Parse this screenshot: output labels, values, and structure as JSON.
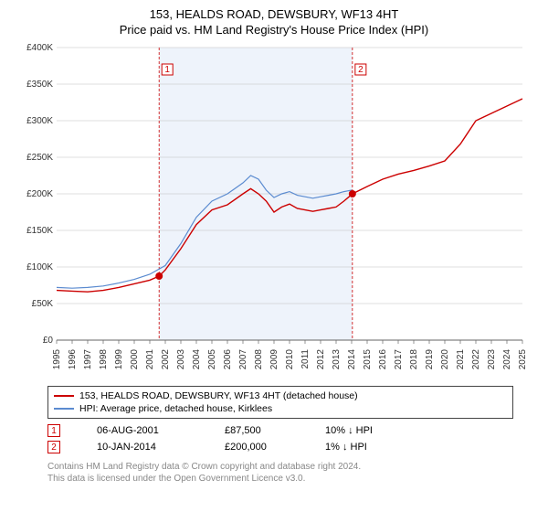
{
  "title_line1": "153, HEALDS ROAD, DEWSBURY, WF13 4HT",
  "title_line2": "Price paid vs. HM Land Registry's House Price Index (HPI)",
  "chart": {
    "type": "line",
    "background_color": "#ffffff",
    "shaded_band": {
      "x_from": 2001.6,
      "x_to": 2014.05,
      "fill": "#eef3fb"
    },
    "xlim": [
      1995,
      2025
    ],
    "ylim": [
      0,
      400000
    ],
    "ytick_step": 50000,
    "ytick_labels": [
      "£0",
      "£50K",
      "£100K",
      "£150K",
      "£200K",
      "£250K",
      "£300K",
      "£350K",
      "£400K"
    ],
    "xtick_step": 1,
    "xtick_labels": [
      "1995",
      "1996",
      "1997",
      "1998",
      "1999",
      "2000",
      "2001",
      "2002",
      "2003",
      "2004",
      "2005",
      "2006",
      "2007",
      "2008",
      "2009",
      "2010",
      "2011",
      "2012",
      "2013",
      "2014",
      "2015",
      "2016",
      "2017",
      "2018",
      "2019",
      "2020",
      "2021",
      "2022",
      "2023",
      "2024",
      "2025"
    ],
    "grid_color": "#bfbfbf",
    "axis_color": "#666666",
    "series": [
      {
        "name": "property",
        "label": "153, HEALDS ROAD, DEWSBURY, WF13 4HT (detached house)",
        "color": "#cc0000",
        "width": 1.4,
        "data": [
          [
            1995,
            68000
          ],
          [
            1996,
            67000
          ],
          [
            1997,
            66000
          ],
          [
            1998,
            68000
          ],
          [
            1999,
            72000
          ],
          [
            2000,
            77000
          ],
          [
            2001,
            82000
          ],
          [
            2001.6,
            87500
          ],
          [
            2002,
            96000
          ],
          [
            2003,
            125000
          ],
          [
            2004,
            158000
          ],
          [
            2005,
            178000
          ],
          [
            2006,
            185000
          ],
          [
            2007,
            200000
          ],
          [
            2007.5,
            207000
          ],
          [
            2008,
            200000
          ],
          [
            2008.5,
            190000
          ],
          [
            2009,
            175000
          ],
          [
            2009.5,
            182000
          ],
          [
            2010,
            186000
          ],
          [
            2010.5,
            180000
          ],
          [
            2011,
            178000
          ],
          [
            2011.5,
            176000
          ],
          [
            2012,
            178000
          ],
          [
            2012.5,
            180000
          ],
          [
            2013,
            182000
          ],
          [
            2013.5,
            190000
          ],
          [
            2014.05,
            200000
          ],
          [
            2015,
            210000
          ],
          [
            2016,
            220000
          ],
          [
            2017,
            227000
          ],
          [
            2018,
            232000
          ],
          [
            2019,
            238000
          ],
          [
            2020,
            245000
          ],
          [
            2021,
            268000
          ],
          [
            2022,
            300000
          ],
          [
            2023,
            310000
          ],
          [
            2024,
            320000
          ],
          [
            2025,
            330000
          ]
        ]
      },
      {
        "name": "hpi",
        "label": "HPI: Average price, detached house, Kirklees",
        "color": "#5b8bd0",
        "width": 1.2,
        "data": [
          [
            1995,
            72000
          ],
          [
            1996,
            71000
          ],
          [
            1997,
            72000
          ],
          [
            1998,
            74000
          ],
          [
            1999,
            78000
          ],
          [
            2000,
            83000
          ],
          [
            2001,
            90000
          ],
          [
            2002,
            102000
          ],
          [
            2003,
            132000
          ],
          [
            2004,
            168000
          ],
          [
            2005,
            190000
          ],
          [
            2006,
            200000
          ],
          [
            2007,
            215000
          ],
          [
            2007.5,
            225000
          ],
          [
            2008,
            220000
          ],
          [
            2008.5,
            205000
          ],
          [
            2009,
            195000
          ],
          [
            2009.5,
            200000
          ],
          [
            2010,
            203000
          ],
          [
            2010.5,
            198000
          ],
          [
            2011,
            196000
          ],
          [
            2011.5,
            194000
          ],
          [
            2012,
            196000
          ],
          [
            2012.5,
            198000
          ],
          [
            2013,
            200000
          ],
          [
            2013.5,
            203000
          ],
          [
            2014,
            205000
          ]
        ]
      }
    ],
    "markers": [
      {
        "id": "1",
        "x": 2001.6,
        "y": 87500,
        "dot_color": "#cc0000",
        "line_color": "#cc0000"
      },
      {
        "id": "2",
        "x": 2014.05,
        "y": 200000,
        "dot_color": "#cc0000",
        "line_color": "#cc0000"
      }
    ],
    "label_fontsize": 10
  },
  "legend": {
    "items": [
      {
        "color": "#cc0000",
        "label": "153, HEALDS ROAD, DEWSBURY, WF13 4HT (detached house)"
      },
      {
        "color": "#5b8bd0",
        "label": "HPI: Average price, detached house, Kirklees"
      }
    ]
  },
  "marker_rows": [
    {
      "badge": "1",
      "date": "06-AUG-2001",
      "price": "£87,500",
      "delta": "10% ↓ HPI"
    },
    {
      "badge": "2",
      "date": "10-JAN-2014",
      "price": "£200,000",
      "delta": "1% ↓ HPI"
    }
  ],
  "footer_line1": "Contains HM Land Registry data © Crown copyright and database right 2024.",
  "footer_line2": "This data is licensed under the Open Government Licence v3.0.",
  "badge_border_color": "#cc0000"
}
